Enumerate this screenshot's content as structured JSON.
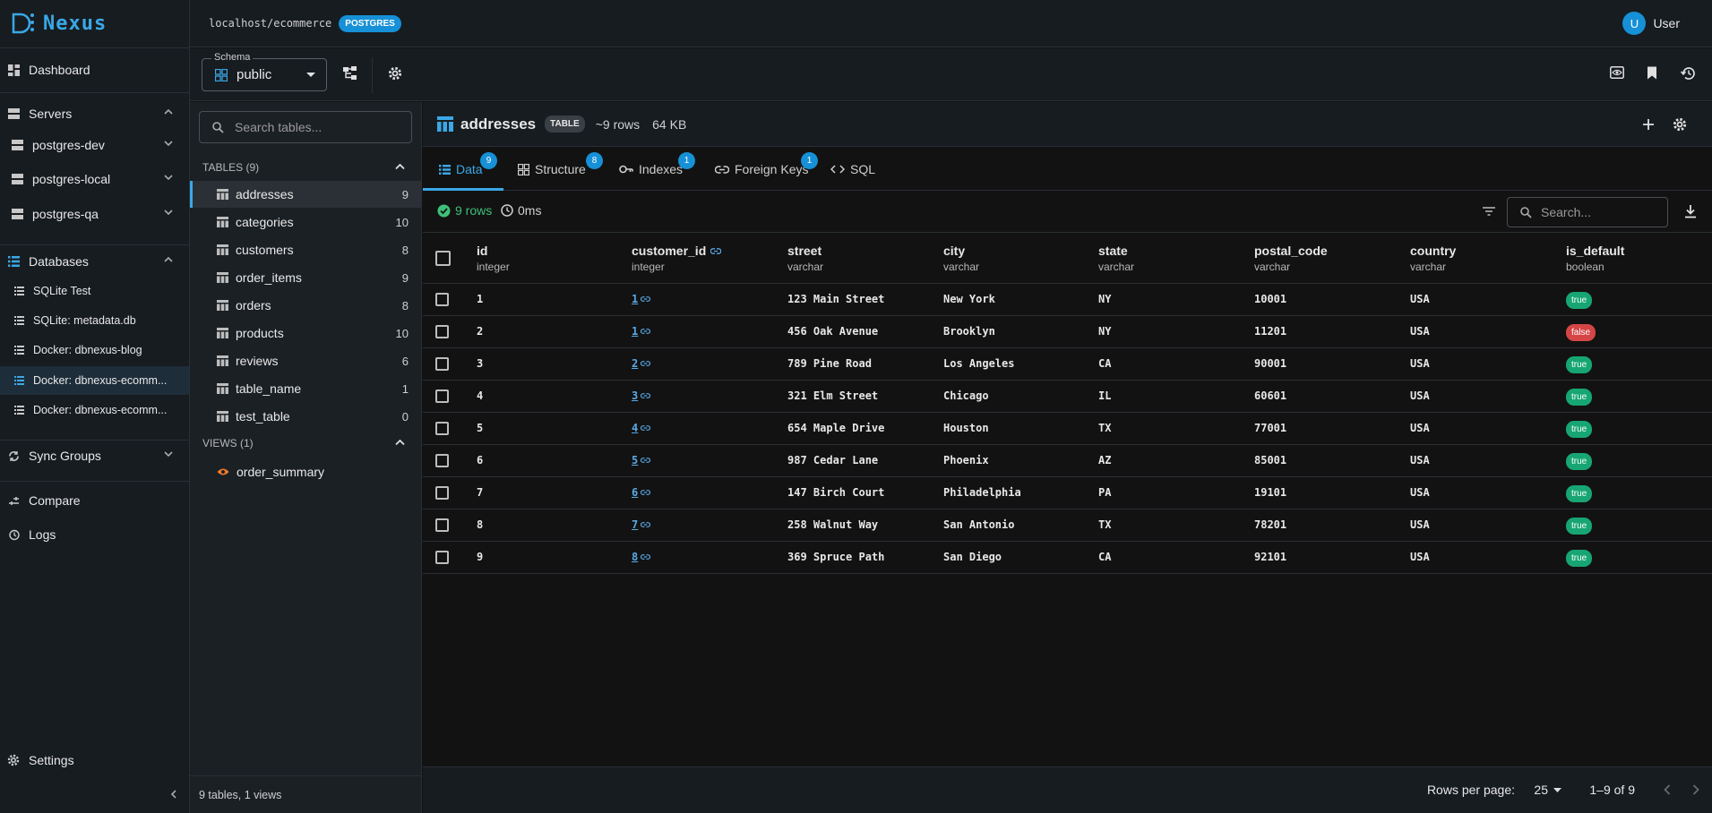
{
  "brand": {
    "name": "Nexus",
    "accent": "#3aa8e6"
  },
  "topbar": {
    "connection": "localhost/ecommerce",
    "db_badge": "POSTGRES",
    "user_initial": "U",
    "user_name": "User"
  },
  "nav": {
    "dashboard": "Dashboard",
    "servers_label": "Servers",
    "servers": [
      "postgres-dev",
      "postgres-local",
      "postgres-qa"
    ],
    "databases_label": "Databases",
    "databases": [
      "SQLite Test",
      "SQLite: metadata.db",
      "Docker: dbnexus-blog",
      "Docker: dbnexus-ecomm...",
      "Docker: dbnexus-ecomm..."
    ],
    "sync_groups": "Sync Groups",
    "compare": "Compare",
    "logs": "Logs",
    "settings": "Settings"
  },
  "toolbar": {
    "schema_legend": "Schema",
    "schema_value": "public"
  },
  "tables_panel": {
    "search_placeholder": "Search tables...",
    "tables_header": "TABLES (9)",
    "tables": [
      {
        "name": "addresses",
        "count": "9"
      },
      {
        "name": "categories",
        "count": "10"
      },
      {
        "name": "customers",
        "count": "8"
      },
      {
        "name": "order_items",
        "count": "9"
      },
      {
        "name": "orders",
        "count": "8"
      },
      {
        "name": "products",
        "count": "10"
      },
      {
        "name": "reviews",
        "count": "6"
      },
      {
        "name": "table_name",
        "count": "1"
      },
      {
        "name": "test_table",
        "count": "0"
      }
    ],
    "views_header": "VIEWS (1)",
    "views": [
      "order_summary"
    ],
    "footer": "9 tables, 1 views"
  },
  "main": {
    "table_name": "addresses",
    "type_badge": "TABLE",
    "rows_estimate": "~9 rows",
    "size": "64 KB",
    "tabs": [
      {
        "label": "Data",
        "badge": "9"
      },
      {
        "label": "Structure",
        "badge": "8"
      },
      {
        "label": "Indexes",
        "badge": "1"
      },
      {
        "label": "Foreign Keys",
        "badge": "1"
      },
      {
        "label": "SQL",
        "badge": ""
      }
    ],
    "rows_info": "9 rows",
    "time_info": "0ms",
    "search_placeholder": "Search...",
    "columns": [
      {
        "name": "id",
        "type": "integer"
      },
      {
        "name": "customer_id",
        "type": "integer"
      },
      {
        "name": "street",
        "type": "varchar"
      },
      {
        "name": "city",
        "type": "varchar"
      },
      {
        "name": "state",
        "type": "varchar"
      },
      {
        "name": "postal_code",
        "type": "varchar"
      },
      {
        "name": "country",
        "type": "varchar"
      },
      {
        "name": "is_default",
        "type": "boolean"
      }
    ],
    "rows": [
      [
        "1",
        "1",
        "123 Main Street",
        "New York",
        "NY",
        "10001",
        "USA",
        "true"
      ],
      [
        "2",
        "1",
        "456 Oak Avenue",
        "Brooklyn",
        "NY",
        "11201",
        "USA",
        "false"
      ],
      [
        "3",
        "2",
        "789 Pine Road",
        "Los Angeles",
        "CA",
        "90001",
        "USA",
        "true"
      ],
      [
        "4",
        "3",
        "321 Elm Street",
        "Chicago",
        "IL",
        "60601",
        "USA",
        "true"
      ],
      [
        "5",
        "4",
        "654 Maple Drive",
        "Houston",
        "TX",
        "77001",
        "USA",
        "true"
      ],
      [
        "6",
        "5",
        "987 Cedar Lane",
        "Phoenix",
        "AZ",
        "85001",
        "USA",
        "true"
      ],
      [
        "7",
        "6",
        "147 Birch Court",
        "Philadelphia",
        "PA",
        "19101",
        "USA",
        "true"
      ],
      [
        "8",
        "7",
        "258 Walnut Way",
        "San Antonio",
        "TX",
        "78201",
        "USA",
        "true"
      ],
      [
        "9",
        "8",
        "369 Spruce Path",
        "San Diego",
        "CA",
        "92101",
        "USA",
        "true"
      ]
    ],
    "footer": {
      "rows_per_page_label": "Rows per page:",
      "rows_per_page": "25",
      "range": "1–9 of 9"
    }
  }
}
